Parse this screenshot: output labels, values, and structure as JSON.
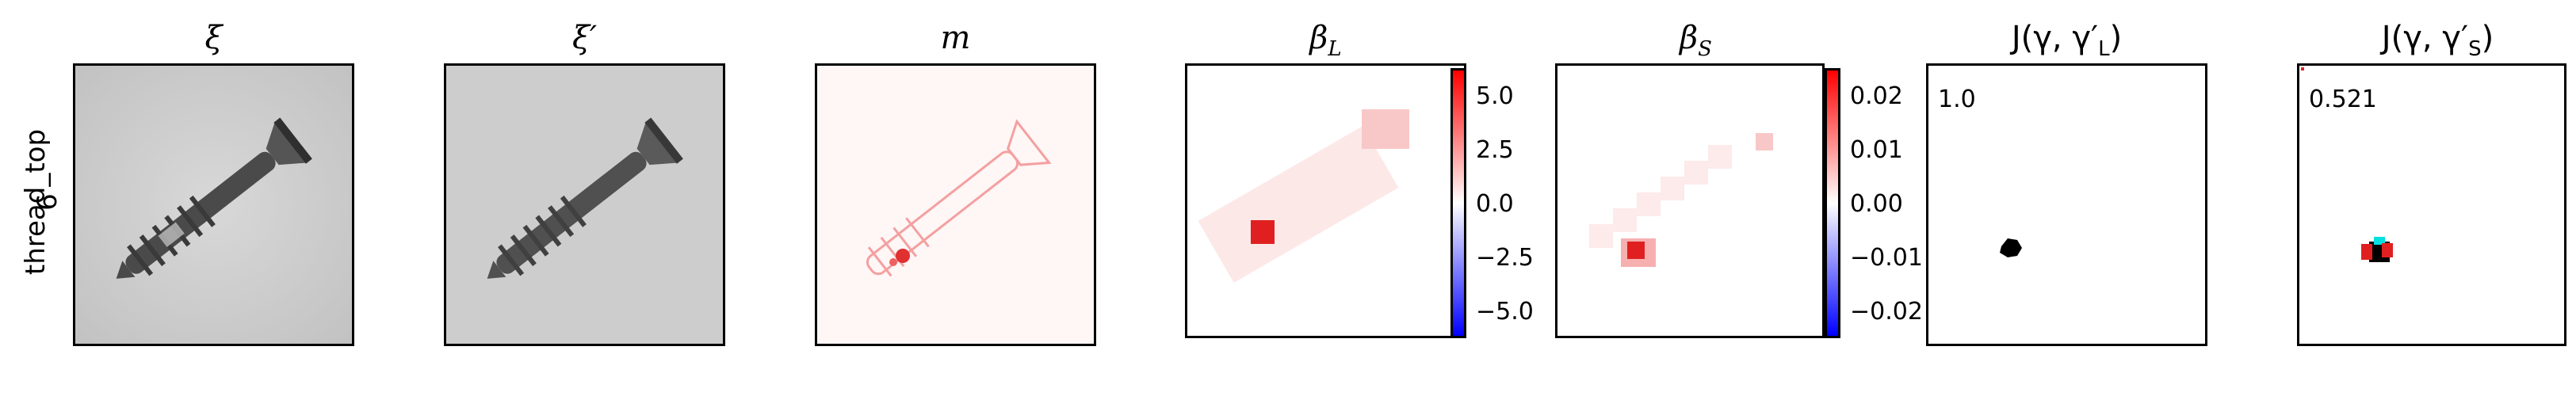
{
  "row_label": {
    "line1": "thread_top",
    "line2": "6"
  },
  "panels": [
    {
      "title": "ξ"
    },
    {
      "title": "ξ′"
    },
    {
      "title": "m"
    },
    {
      "title": "β",
      "subscript": "L"
    },
    {
      "title": "β",
      "subscript": "S"
    },
    {
      "title": "J(γ, γ′",
      "subscript": "L",
      "suffix": ")",
      "score": "1.0"
    },
    {
      "title": "J(γ, γ′",
      "subscript": "S",
      "suffix": ")",
      "score": "0.521"
    }
  ],
  "colorbar_L": {
    "ticks": [
      "5.0",
      "2.5",
      "0.0",
      "−2.5",
      "−5.0"
    ],
    "colors": [
      "#0000ff",
      "#ffffff",
      "#ff0000"
    ]
  },
  "colorbar_S": {
    "ticks": [
      "0.02",
      "0.01",
      "0.00",
      "−0.01",
      "−0.02"
    ],
    "colors": [
      "#0000ff",
      "#ffffff",
      "#ff0000"
    ]
  }
}
